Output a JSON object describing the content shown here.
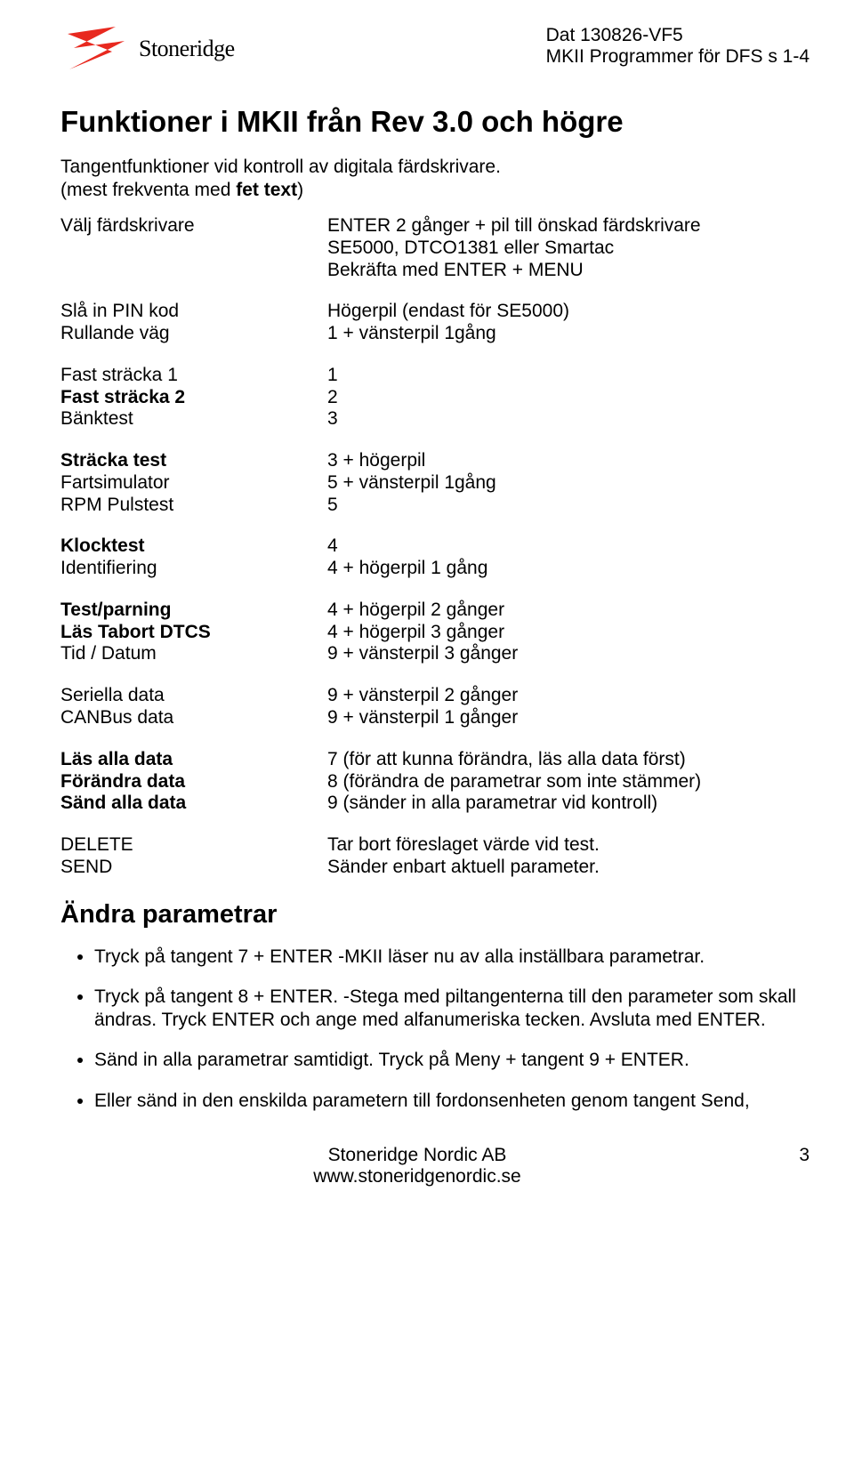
{
  "header": {
    "logo_text": "Stoneridge",
    "right_line1": "Dat 130826-VF5",
    "right_line2": "MKII Programmer för DFS s 1-4"
  },
  "title": "Funktioner i MKII från Rev 3.0 och högre",
  "sub1": "Tangentfunktioner vid kontroll av digitala färdskrivare.",
  "sub2_a": "(mest frekventa med ",
  "sub2_b": "fet text",
  "sub2_c": ")",
  "rows1": [
    {
      "k": "Välj färdskrivare",
      "kb": false,
      "v": "ENTER 2 gånger + pil till önskad färdskrivare"
    },
    {
      "k": "",
      "kb": false,
      "v": "SE5000, DTCO1381 eller Smartac"
    },
    {
      "k": "",
      "kb": false,
      "v": "Bekräfta med ENTER + MENU"
    }
  ],
  "rows2": [
    {
      "k": "Slå in PIN kod",
      "kb": false,
      "v": "Högerpil (endast för SE5000)"
    },
    {
      "k": "Rullande väg",
      "kb": false,
      "v": "1 + vänsterpil 1gång"
    }
  ],
  "rows3": [
    {
      "k": "Fast sträcka 1",
      "kb": false,
      "v": "1"
    },
    {
      "k": "Fast sträcka 2",
      "kb": true,
      "v": "2"
    },
    {
      "k": "Bänktest",
      "kb": false,
      "v": "3"
    }
  ],
  "rows4": [
    {
      "k": "Sträcka test",
      "kb": true,
      "v": "3 + högerpil"
    },
    {
      "k": "Fartsimulator",
      "kb": false,
      "v": "5 + vänsterpil 1gång"
    },
    {
      "k": "RPM Pulstest",
      "kb": false,
      "v": "5"
    }
  ],
  "rows5": [
    {
      "k": "Klocktest",
      "kb": true,
      "v": "4"
    },
    {
      "k": "Identifiering",
      "kb": false,
      "v": "4 + högerpil 1 gång"
    }
  ],
  "rows6": [
    {
      "k": "Test/parning",
      "kb": true,
      "v": "4 + högerpil 2 gånger"
    },
    {
      "k": "Läs Tabort DTCS",
      "kb": true,
      "v": "4 + högerpil 3 gånger"
    },
    {
      "k": "Tid / Datum",
      "kb": false,
      "v": "9 + vänsterpil 3 gånger"
    }
  ],
  "rows7": [
    {
      "k": "Seriella data",
      "kb": false,
      "v": "9 + vänsterpil 2 gånger"
    },
    {
      "k": "CANBus data",
      "kb": false,
      "v": "9 + vänsterpil 1 gånger"
    }
  ],
  "rows8": [
    {
      "k": "Läs alla data",
      "kb": true,
      "v": "7 (för att kunna förändra, läs alla data först)"
    },
    {
      "k": "Förändra data",
      "kb": true,
      "v": "8 (förändra de parametrar som inte stämmer)"
    },
    {
      "k": "Sänd alla data",
      "kb": true,
      "v": "9 (sänder in alla parametrar vid kontroll)"
    }
  ],
  "rows9": [
    {
      "k": "DELETE",
      "kb": false,
      "v": "Tar bort föreslaget värde vid test."
    },
    {
      "k": "SEND",
      "kb": false,
      "v": "Sänder enbart aktuell parameter."
    }
  ],
  "h2": "Ändra parametrar",
  "bullets": [
    "Tryck på tangent 7 + ENTER -MKII läser nu av alla inställbara parametrar.",
    "Tryck på tangent 8 + ENTER.  -Stega med piltangenterna till den parameter som skall ändras. Tryck ENTER och ange med alfanumeriska tecken. Avsluta med ENTER.",
    "Sänd in alla parametrar samtidigt. Tryck på Meny + tangent 9 + ENTER.",
    "Eller sänd in den enskilda parametern till fordonsenheten genom tangent Send,"
  ],
  "footer": {
    "line1": "Stoneridge Nordic AB",
    "line2": "www.stoneridgenordic.se",
    "page": "3"
  },
  "colors": {
    "logo_red": "#e8291f",
    "text": "#000000",
    "background": "#ffffff"
  }
}
